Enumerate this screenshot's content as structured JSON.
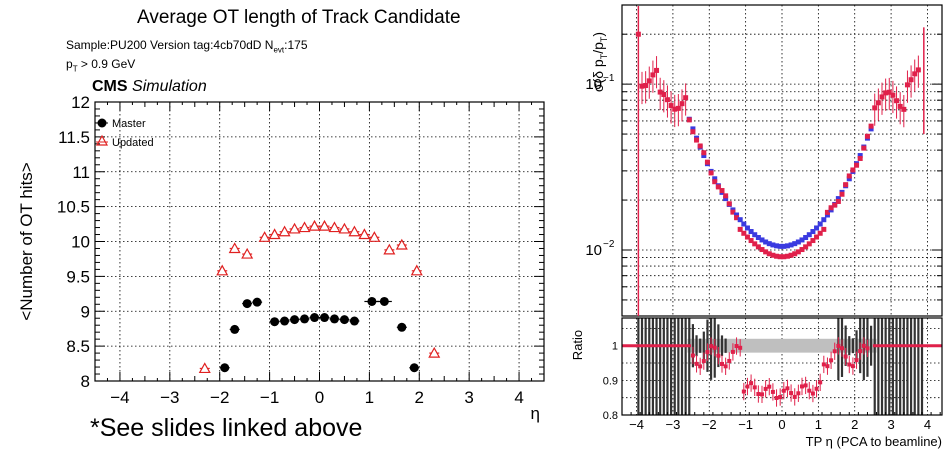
{
  "chart_data": [
    {
      "type": "scatter",
      "title": "Average OT length of Track Candidate",
      "subtitle_sample": "Sample:PU200   Version tag:4cb70dD  N",
      "subtitle_nevt_sub": "evt",
      "subtitle_nevt_val": ":175",
      "pt_cut_p": "p",
      "pt_cut_sub": "T",
      "pt_cut_rest": " > 0.9 GeV",
      "cms_label": "CMS",
      "cms_sub": "Simulation",
      "xlabel": "η",
      "ylabel": "<Number of OT hits>",
      "xlim": [
        -4.5,
        4.5
      ],
      "ylim": [
        8,
        12
      ],
      "x_ticks": [
        "−4",
        "−3",
        "−2",
        "−1",
        "0",
        "1",
        "2",
        "3",
        "4"
      ],
      "y_ticks": [
        "8",
        "8.5",
        "9",
        "9.5",
        "10",
        "10.5",
        "11",
        "11.5",
        "12"
      ],
      "grid": true,
      "legend_position": "top-left",
      "series": [
        {
          "name": "Master",
          "color": "#000000",
          "marker": "filled-circle",
          "x": [
            -1.9,
            -1.7,
            -1.45,
            -1.25,
            -0.9,
            -0.7,
            -0.5,
            -0.3,
            -0.1,
            0.1,
            0.3,
            0.5,
            0.7,
            1.05,
            1.3,
            1.65,
            1.9
          ],
          "y": [
            8.19,
            8.74,
            9.11,
            9.13,
            8.85,
            8.86,
            8.88,
            8.89,
            8.91,
            8.91,
            8.89,
            8.88,
            8.86,
            9.14,
            9.14,
            8.77,
            8.19
          ],
          "xerr": [
            0.1,
            0.1,
            0.1,
            0.1,
            0.1,
            0.1,
            0.1,
            0.1,
            0.1,
            0.1,
            0.1,
            0.1,
            0.1,
            0.15,
            0.15,
            0.1,
            0.1
          ]
        },
        {
          "name": "Updated",
          "color": "#e02020",
          "marker": "open-triangle",
          "x": [
            -2.3,
            -1.95,
            -1.7,
            -1.45,
            -1.1,
            -0.9,
            -0.7,
            -0.5,
            -0.3,
            -0.1,
            0.1,
            0.3,
            0.5,
            0.7,
            0.9,
            1.1,
            1.4,
            1.65,
            1.95,
            2.3
          ],
          "y": [
            8.18,
            9.58,
            9.9,
            9.82,
            10.06,
            10.1,
            10.14,
            10.18,
            10.2,
            10.22,
            10.22,
            10.2,
            10.18,
            10.14,
            10.1,
            10.06,
            9.88,
            9.95,
            9.58,
            8.4
          ],
          "xerr": [
            0.1,
            0.1,
            0.1,
            0.1,
            0.1,
            0.1,
            0.1,
            0.1,
            0.1,
            0.1,
            0.1,
            0.1,
            0.1,
            0.1,
            0.1,
            0.1,
            0.1,
            0.1,
            0.1,
            0.1
          ]
        }
      ]
    },
    {
      "type": "scatter",
      "ylabel": "σ(δ p_T/p_T)",
      "ylabel_parts": {
        "a": "σ(δ p",
        "s1": "T",
        "b": "/p",
        "s2": "T",
        "c": ")"
      },
      "log_y": true,
      "xlim": [
        -4.4,
        4.4
      ],
      "ylim": [
        0.004,
        0.3
      ],
      "y_ticks": [
        {
          "base": "10",
          "exp": "−1",
          "value": 0.1
        },
        {
          "base": "10",
          "exp": "−2",
          "value": 0.01
        }
      ],
      "grid": true,
      "series": [
        {
          "name": "",
          "color": "#3a3ae0",
          "curve": "reference"
        },
        {
          "name": "",
          "color": "#e0204a",
          "curve": "updated"
        }
      ]
    },
    {
      "type": "scatter",
      "ylabel": "Ratio",
      "xlabel": "TP η (PCA to beamline)",
      "xlim": [
        -4.4,
        4.4
      ],
      "ylim": [
        0.8,
        1.08
      ],
      "x_ticks": [
        "−4",
        "−3",
        "−2",
        "−1",
        "0",
        "1",
        "2",
        "3",
        "4"
      ],
      "y_ticks": [
        "0.8",
        "0.9",
        "1"
      ],
      "grid": true,
      "series": [
        {
          "name": "",
          "color": "#e0204a",
          "marker": "filled-square"
        }
      ],
      "band_color": "#bfbfbf"
    }
  ],
  "footnote": "*See slides linked above"
}
